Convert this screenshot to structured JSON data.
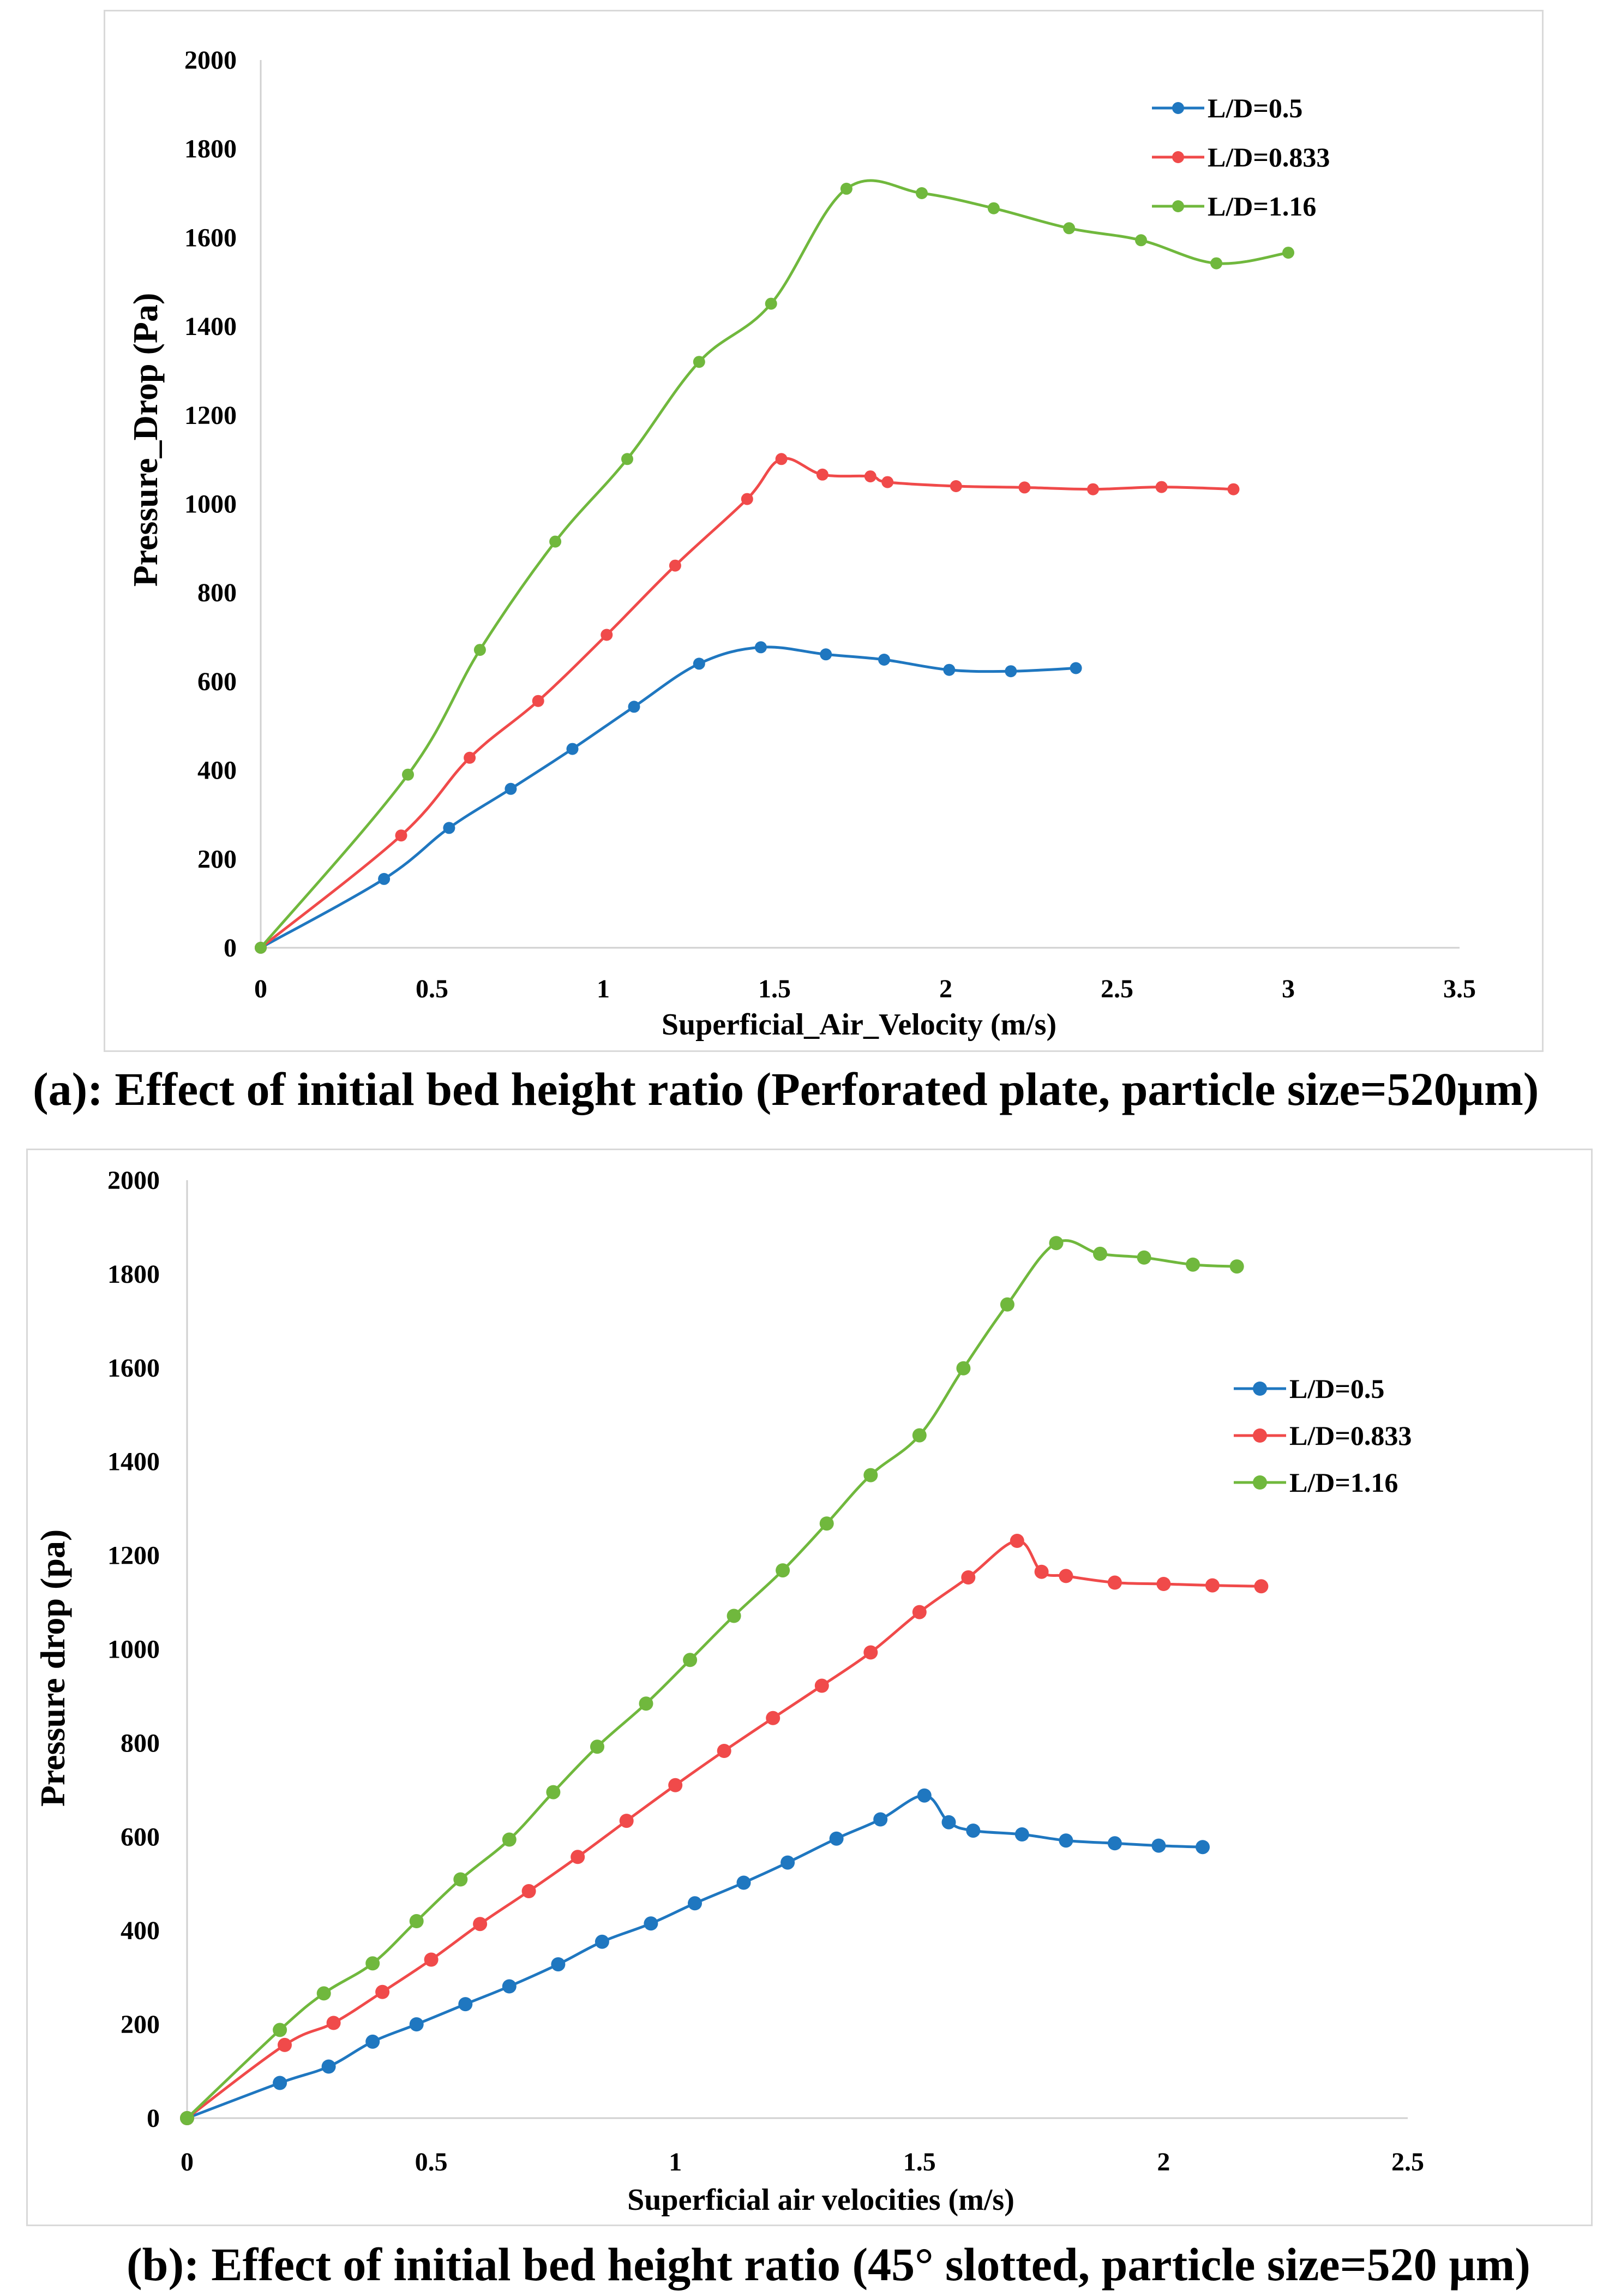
{
  "chart_data": [
    {
      "type": "line",
      "caption": "(a): Effect of initial bed height ratio (Perforated plate, particle size=520µm)",
      "xlabel": "Superficial_Air_Velocity  (m/s)",
      "ylabel": "Pressure_Drop (Pa)",
      "xlim": [
        0,
        3.5
      ],
      "ylim": [
        0,
        2000
      ],
      "xticks": [
        "0",
        "0.5",
        "1",
        "1.5",
        "2",
        "2.5",
        "3",
        "3.5"
      ],
      "yticks": [
        "0",
        "200",
        "400",
        "600",
        "800",
        "1000",
        "1200",
        "1400",
        "1600",
        "1800",
        "2000"
      ],
      "grid": false,
      "legend_position": "top-right",
      "series": [
        {
          "name": "L/D=0.5",
          "color": "#1f77c0",
          "points": [
            [
              0,
              0
            ],
            [
              0.36,
              155
            ],
            [
              0.55,
              270
            ],
            [
              0.73,
              358
            ],
            [
              0.91,
              448
            ],
            [
              1.09,
              543
            ],
            [
              1.28,
              640
            ],
            [
              1.46,
              677
            ],
            [
              1.65,
              661
            ],
            [
              1.82,
              649
            ],
            [
              2.01,
              626
            ],
            [
              2.19,
              623
            ],
            [
              2.38,
              630
            ]
          ]
        },
        {
          "name": "L/D=0.833",
          "color": "#f04a4a",
          "points": [
            [
              0,
              0
            ],
            [
              0.41,
              253
            ],
            [
              0.61,
              428
            ],
            [
              0.81,
              556
            ],
            [
              1.01,
              705
            ],
            [
              1.21,
              861
            ],
            [
              1.42,
              1011
            ],
            [
              1.52,
              1101
            ],
            [
              1.64,
              1066
            ],
            [
              1.78,
              1062
            ],
            [
              1.83,
              1049
            ],
            [
              2.03,
              1040
            ],
            [
              2.23,
              1037
            ],
            [
              2.43,
              1033
            ],
            [
              2.63,
              1038
            ],
            [
              2.84,
              1033
            ]
          ]
        },
        {
          "name": "L/D=1.16",
          "color": "#70b83d",
          "points": [
            [
              0,
              0
            ],
            [
              0.43,
              390
            ],
            [
              0.64,
              671
            ],
            [
              0.86,
              915
            ],
            [
              1.07,
              1101
            ],
            [
              1.28,
              1320
            ],
            [
              1.49,
              1451
            ],
            [
              1.71,
              1710
            ],
            [
              1.93,
              1700
            ],
            [
              2.14,
              1666
            ],
            [
              2.36,
              1621
            ],
            [
              2.57,
              1594
            ],
            [
              2.79,
              1542
            ],
            [
              3.0,
              1566
            ]
          ]
        }
      ]
    },
    {
      "type": "line",
      "caption": "(b): Effect of initial bed height ratio (45° slotted, particle size=520 µm)",
      "xlabel": "Superficial air velocities (m/s)",
      "ylabel": "Pressure drop (pa)",
      "xlim": [
        0,
        2.5
      ],
      "ylim": [
        0,
        2000
      ],
      "xticks": [
        "0",
        "0.5",
        "1",
        "1.5",
        "2",
        "2.5"
      ],
      "yticks": [
        "0",
        "200",
        "400",
        "600",
        "800",
        "1000",
        "1200",
        "1400",
        "1600",
        "1800",
        "2000"
      ],
      "grid": false,
      "legend_position": "right",
      "series": [
        {
          "name": "L/D=0.5",
          "color": "#1f77c0",
          "points": [
            [
              0,
              0
            ],
            [
              0.19,
              75
            ],
            [
              0.29,
              110
            ],
            [
              0.38,
              163
            ],
            [
              0.47,
              200
            ],
            [
              0.57,
              243
            ],
            [
              0.66,
              281
            ],
            [
              0.76,
              328
            ],
            [
              0.85,
              376
            ],
            [
              0.95,
              415
            ],
            [
              1.04,
              458
            ],
            [
              1.14,
              502
            ],
            [
              1.23,
              545
            ],
            [
              1.33,
              596
            ],
            [
              1.42,
              637
            ],
            [
              1.51,
              688
            ],
            [
              1.56,
              631
            ],
            [
              1.61,
              613
            ],
            [
              1.71,
              605
            ],
            [
              1.8,
              592
            ],
            [
              1.9,
              586
            ],
            [
              1.99,
              581
            ],
            [
              2.08,
              578
            ]
          ]
        },
        {
          "name": "L/D=0.833",
          "color": "#f04a4a",
          "points": [
            [
              0,
              0
            ],
            [
              0.2,
              156
            ],
            [
              0.3,
              203
            ],
            [
              0.4,
              269
            ],
            [
              0.5,
              338
            ],
            [
              0.6,
              414
            ],
            [
              0.7,
              484
            ],
            [
              0.8,
              557
            ],
            [
              0.9,
              634
            ],
            [
              1.0,
              710
            ],
            [
              1.1,
              783
            ],
            [
              1.2,
              853
            ],
            [
              1.3,
              922
            ],
            [
              1.4,
              993
            ],
            [
              1.5,
              1079
            ],
            [
              1.6,
              1153
            ],
            [
              1.7,
              1231
            ],
            [
              1.75,
              1165
            ],
            [
              1.8,
              1156
            ],
            [
              1.9,
              1142
            ],
            [
              2.0,
              1139
            ],
            [
              2.1,
              1136
            ],
            [
              2.2,
              1134
            ]
          ]
        },
        {
          "name": "L/D=1.16",
          "color": "#70b83d",
          "points": [
            [
              0,
              0
            ],
            [
              0.19,
              188
            ],
            [
              0.28,
              266
            ],
            [
              0.38,
              330
            ],
            [
              0.47,
              420
            ],
            [
              0.56,
              509
            ],
            [
              0.66,
              594
            ],
            [
              0.75,
              695
            ],
            [
              0.84,
              792
            ],
            [
              0.94,
              884
            ],
            [
              1.03,
              977
            ],
            [
              1.12,
              1071
            ],
            [
              1.22,
              1168
            ],
            [
              1.31,
              1268
            ],
            [
              1.4,
              1371
            ],
            [
              1.5,
              1456
            ],
            [
              1.59,
              1599
            ],
            [
              1.68,
              1735
            ],
            [
              1.78,
              1866
            ],
            [
              1.87,
              1843
            ],
            [
              1.96,
              1835
            ],
            [
              2.06,
              1820
            ],
            [
              2.15,
              1816
            ]
          ]
        }
      ]
    }
  ]
}
